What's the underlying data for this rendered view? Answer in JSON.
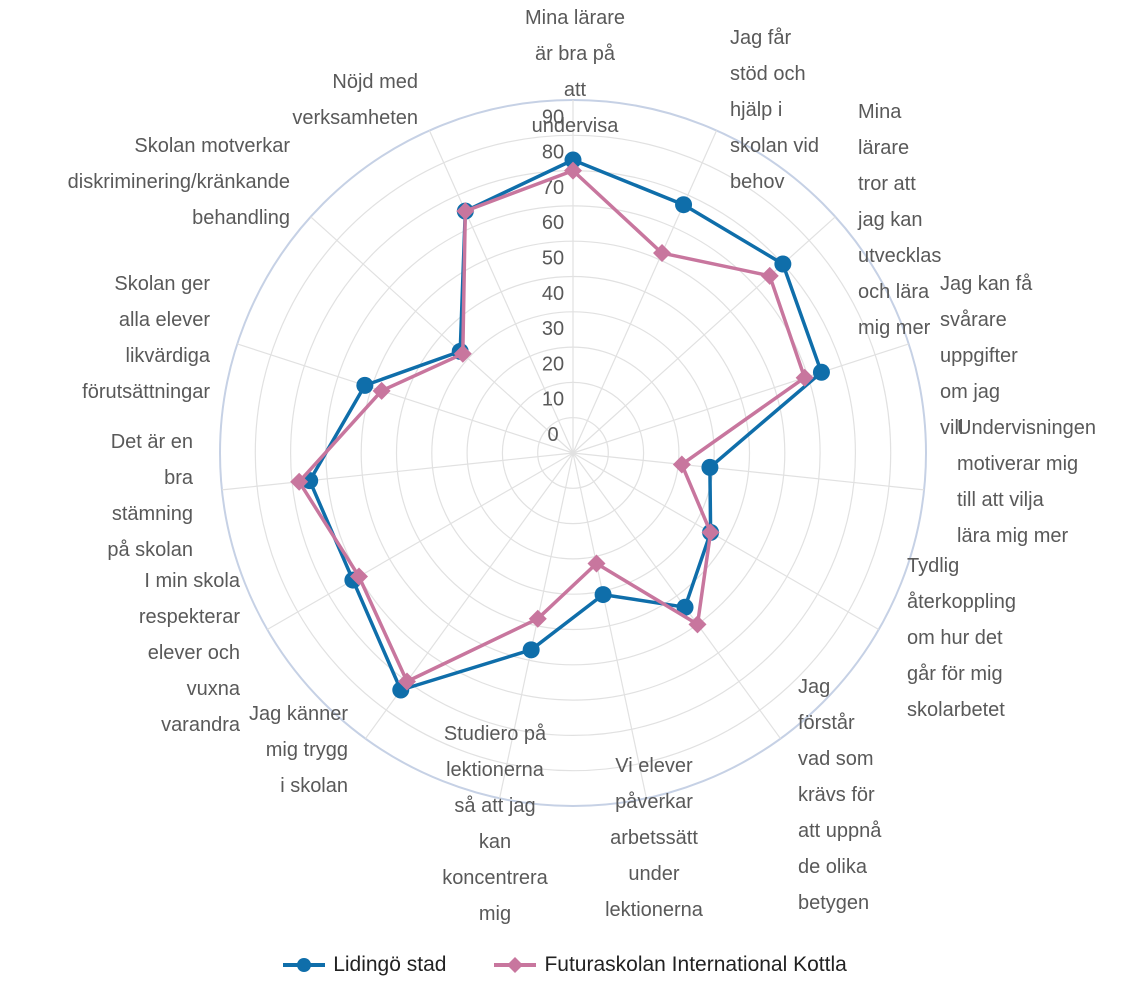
{
  "chart_data": {
    "type": "radar",
    "categories": [
      "Mina lärare är bra på att undervisa",
      "Jag får stöd och hjälp i skolan vid behov",
      "Mina lärare tror att jag kan utvecklas och lära mig mer",
      "Jag kan få svårare uppgifter om jag vill",
      "Undervisningen motiverar mig till att vilja lära mig mer",
      "Tydlig återkoppling om hur det går för mig skolarbetet",
      "Jag förstår vad som krävs för att uppnå de olika betygen",
      "Vi elever påverkar arbetssätt under lektionerna",
      "Studiero på lektionerna så att jag kan koncentrera mig",
      "Jag känner mig trygg i skolan",
      "I min skola respekterar elever och vuxna varandra",
      "Det är en bra stämning på skolan",
      "Skolan ger alla elever likvärdiga förutsättningar",
      "Skolan motverkar diskriminering/kränkande behandling",
      "Nöjd med verksamheten"
    ],
    "series": [
      {
        "name": "Lidingö stad",
        "color": "#0f6eaa",
        "marker": "circle",
        "values": [
          83,
          77,
          80,
          74,
          39,
          45,
          54,
          41,
          57,
          83,
          72,
          75,
          62,
          43,
          75
        ]
      },
      {
        "name": "Futuraskolan International Kottla",
        "color": "#c8769e",
        "marker": "diamond",
        "values": [
          80,
          62,
          75,
          69,
          31,
          45,
          60,
          32,
          48,
          80,
          70,
          78,
          57,
          42,
          75
        ]
      }
    ],
    "rlim": [
      0,
      100
    ],
    "r_ticks": [
      0,
      10,
      20,
      30,
      40,
      50,
      60,
      70,
      80,
      90
    ],
    "grid": true,
    "legend_position": "bottom"
  }
}
